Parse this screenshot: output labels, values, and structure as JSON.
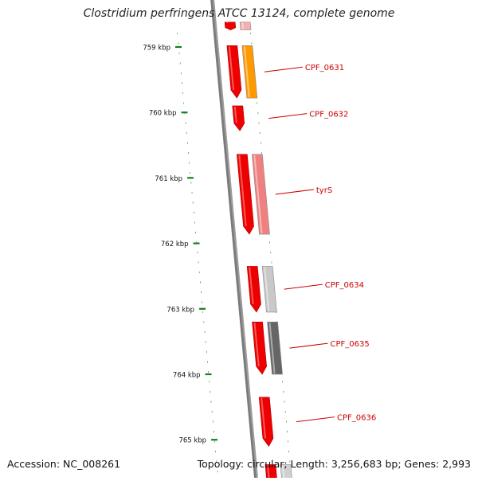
{
  "title": "Clostridium perfringens ATCC 13124, complete genome",
  "accession": "Accession: NC_008261",
  "summary": "Topology: circular; Length: 3,256,683 bp; Genes: 2,993",
  "scale": {
    "unit": "kbp",
    "ticks": [
      {
        "kbp": 759,
        "label": "759 kbp"
      },
      {
        "kbp": 760,
        "label": "760 kbp"
      },
      {
        "kbp": 761,
        "label": "761 kbp"
      },
      {
        "kbp": 762,
        "label": "762 kbp"
      },
      {
        "kbp": 763,
        "label": "763 kbp"
      },
      {
        "kbp": 764,
        "label": "764 kbp"
      },
      {
        "kbp": 765,
        "label": "765 kbp"
      }
    ]
  },
  "colors": {
    "backbone": "#7a7a7a",
    "scale_marks": "#1a7d1a",
    "label_text": "#cc0000",
    "cds": "#ee0000"
  },
  "genes": [
    {
      "name": "",
      "start_kbp": 758.62,
      "end_kbp": 758.74,
      "cds_color": "#ee0000",
      "gene_color": "#f4b0b0"
    },
    {
      "name": "CPF_0631",
      "start_kbp": 758.98,
      "end_kbp": 759.78,
      "cds_color": "#ee0000",
      "gene_color": "#ff9900"
    },
    {
      "name": "CPF_0632",
      "start_kbp": 759.9,
      "end_kbp": 760.28,
      "cds_color": "#ee0000",
      "gene_color": ""
    },
    {
      "name": "tyrS",
      "start_kbp": 760.64,
      "end_kbp": 761.86,
      "cds_color": "#ee0000",
      "gene_color": "#f08080"
    },
    {
      "name": "CPF_0634",
      "start_kbp": 762.35,
      "end_kbp": 763.05,
      "cds_color": "#ee0000",
      "gene_color": "#c8c8c8"
    },
    {
      "name": "CPF_0635",
      "start_kbp": 763.2,
      "end_kbp": 764.0,
      "cds_color": "#ee0000",
      "gene_color": "#666666"
    },
    {
      "name": "CPF_0636",
      "start_kbp": 764.35,
      "end_kbp": 765.1,
      "cds_color": "#ee0000",
      "gene_color": ""
    },
    {
      "name": "",
      "start_kbp": 765.38,
      "end_kbp": 765.7,
      "cds_color": "#ee0000",
      "gene_color": "#d0d0d0"
    }
  ]
}
